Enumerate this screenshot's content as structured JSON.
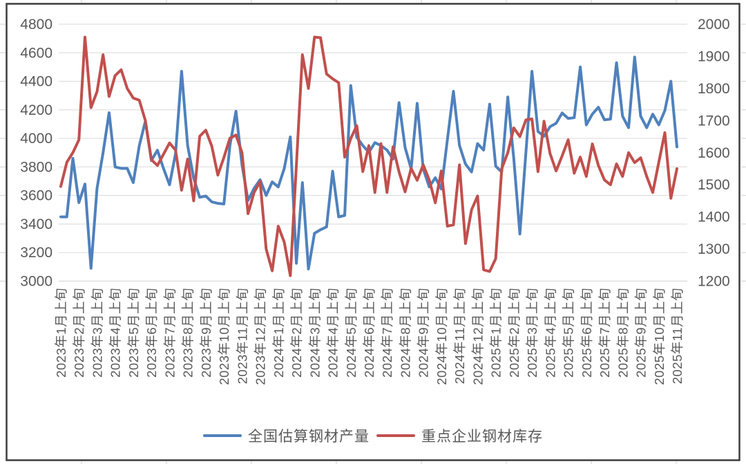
{
  "chart_data": {
    "type": "line",
    "title": "",
    "grid": "horizontal",
    "legend_position": "bottom",
    "x_axis": {
      "points_total": 103,
      "label_every_n_points": 3,
      "tick_labels": [
        "2023年1月上旬",
        "2023年2月上旬",
        "2023年3月上旬",
        "2023年4月上旬",
        "2023年5月上旬",
        "2023年6月上旬",
        "2023年7月上旬",
        "2023年8月上旬",
        "2023年9月上旬",
        "2023年10月上旬",
        "2023年11月上旬",
        "2023年12月上旬",
        "2024年1月上旬",
        "2024年2月上旬",
        "2024年3月上旬",
        "2024年4月上旬",
        "2024年5月上旬",
        "2024年6月上旬",
        "2024年7月上旬",
        "2024年8月上旬",
        "2024年9月上旬",
        "2024年10月上旬",
        "2024年11月上旬",
        "2024年12月上旬",
        "2025年1月上旬",
        "2025年2月上旬",
        "2025年3月上旬",
        "2025年4月上旬",
        "2025年5月上旬",
        "2025年6月上旬",
        "2025年7月上旬",
        "2025年8月上旬",
        "2025年9月上旬",
        "2025年10月上旬",
        "2025年11月上旬"
      ]
    },
    "left_axis": {
      "min": 3000,
      "max": 4800,
      "step": 200,
      "tick_labels": [
        "4800",
        "4600",
        "4400",
        "4200",
        "4000",
        "3800",
        "3600",
        "3400",
        "3200",
        "3000"
      ]
    },
    "right_axis": {
      "min": 1200,
      "max": 2000,
      "step": 100,
      "tick_labels": [
        "2000",
        "1900",
        "1800",
        "1700",
        "1600",
        "1500",
        "1400",
        "1300",
        "1200"
      ]
    },
    "series": [
      {
        "name": "全国估算钢材产量",
        "color": "#4F81BD",
        "axis": "left",
        "values": [
          3450,
          3450,
          3860,
          3550,
          3680,
          3090,
          3650,
          3900,
          4180,
          3800,
          3790,
          3790,
          3690,
          3950,
          4120,
          3845,
          3917,
          3790,
          3675,
          3893,
          4470,
          3950,
          3722,
          3587,
          3596,
          3555,
          3545,
          3540,
          3950,
          4190,
          3815,
          3565,
          3650,
          3710,
          3600,
          3695,
          3660,
          3790,
          4010,
          3125,
          3690,
          3085,
          3335,
          3360,
          3380,
          3770,
          3450,
          3460,
          4370,
          4008,
          3950,
          3902,
          3970,
          3950,
          3918,
          3855,
          4250,
          3936,
          3787,
          4245,
          3787,
          3660,
          3724,
          3645,
          3990,
          4330,
          3950,
          3820,
          3765,
          3963,
          3918,
          4240,
          3805,
          3765,
          4290,
          3855,
          3330,
          3900,
          4470,
          4048,
          4015,
          4082,
          4106,
          4178,
          4140,
          4145,
          4500,
          4095,
          4170,
          4218,
          4130,
          4135,
          4530,
          4155,
          4075,
          4570,
          4155,
          4075,
          4170,
          4095,
          4195,
          4400,
          3940
        ]
      },
      {
        "name": "重点企业钢材库存",
        "color": "#C0504D",
        "axis": "right",
        "values": [
          1495,
          1570,
          1600,
          1640,
          1960,
          1740,
          1790,
          1905,
          1775,
          1840,
          1858,
          1800,
          1770,
          1763,
          1700,
          1578,
          1560,
          1595,
          1630,
          1608,
          1483,
          1580,
          1450,
          1651,
          1670,
          1620,
          1530,
          1585,
          1645,
          1655,
          1600,
          1410,
          1476,
          1510,
          1300,
          1232,
          1371,
          1321,
          1217,
          1560,
          1905,
          1800,
          1960,
          1958,
          1845,
          1830,
          1818,
          1586,
          1644,
          1684,
          1541,
          1622,
          1476,
          1628,
          1476,
          1618,
          1540,
          1478,
          1551,
          1514,
          1562,
          1515,
          1444,
          1543,
          1371,
          1375,
          1562,
          1317,
          1422,
          1465,
          1235,
          1230,
          1270,
          1550,
          1600,
          1677,
          1650,
          1702,
          1705,
          1541,
          1698,
          1597,
          1543,
          1590,
          1640,
          1536,
          1586,
          1526,
          1627,
          1560,
          1515,
          1500,
          1565,
          1526,
          1600,
          1569,
          1584,
          1526,
          1476,
          1570,
          1662,
          1458,
          1550
        ]
      }
    ]
  },
  "legend": {
    "items": [
      {
        "label": "全国估算钢材产量",
        "color": "#4F81BD"
      },
      {
        "label": "重点企业钢材库存",
        "color": "#C0504D"
      }
    ]
  },
  "colors": {
    "background": "#FFFFFF",
    "gridline": "#D9D9D9",
    "axis_line": "#BFBFBF",
    "tick_text": "#595959",
    "frame": "#3C3C3C",
    "sheet_stub": "#CFCFCF"
  }
}
